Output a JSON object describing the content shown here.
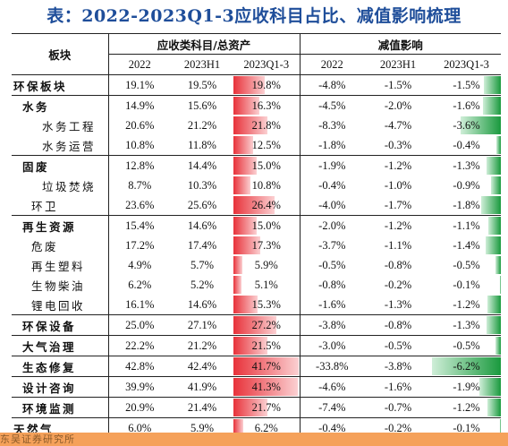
{
  "title": "表：2022-2023Q1-3应收科目占比、减值影响梳理",
  "header": {
    "col_name": "板块",
    "group1": "应收类科目/总资产",
    "group2": "减值影响",
    "sub": [
      "2022",
      "2023H1",
      "2023Q1-3",
      "2022",
      "2023H1",
      "2023Q1-3"
    ]
  },
  "rows": [
    {
      "name": "环保板块",
      "level": 0,
      "v": [
        "19.1%",
        "19.5%",
        "19.8%",
        "-4.8%",
        "-1.5%",
        "-1.5%"
      ],
      "r": 19.8,
      "i": -1.5
    },
    {
      "name": "水务",
      "level": 1,
      "v": [
        "14.9%",
        "15.6%",
        "16.3%",
        "-4.5%",
        "-2.0%",
        "-1.6%"
      ],
      "r": 16.3,
      "i": -1.6
    },
    {
      "name": "水务工程",
      "level": 2,
      "v": [
        "20.6%",
        "21.2%",
        "21.8%",
        "-8.3%",
        "-4.7%",
        "-3.6%"
      ],
      "r": 21.8,
      "i": -3.6
    },
    {
      "name": "水务运营",
      "level": 2,
      "v": [
        "10.8%",
        "11.8%",
        "12.5%",
        "-1.8%",
        "-0.3%",
        "-0.4%"
      ],
      "r": 12.5,
      "i": -0.4
    },
    {
      "name": "固废",
      "level": 1,
      "v": [
        "12.8%",
        "14.4%",
        "15.0%",
        "-1.9%",
        "-1.2%",
        "-1.3%"
      ],
      "r": 15.0,
      "i": -1.3
    },
    {
      "name": "垃圾焚烧",
      "level": 2,
      "v": [
        "8.7%",
        "10.3%",
        "10.8%",
        "-0.4%",
        "-1.0%",
        "-0.9%"
      ],
      "r": 10.8,
      "i": -0.9
    },
    {
      "name": "环卫",
      "level": 3,
      "v": [
        "23.6%",
        "25.6%",
        "26.4%",
        "-4.0%",
        "-1.7%",
        "-1.8%"
      ],
      "r": 26.4,
      "i": -1.8
    },
    {
      "name": "再生资源",
      "level": 1,
      "v": [
        "15.4%",
        "14.6%",
        "15.0%",
        "-2.0%",
        "-1.2%",
        "-1.1%"
      ],
      "r": 15.0,
      "i": -1.1
    },
    {
      "name": "危废",
      "level": 3,
      "v": [
        "17.2%",
        "17.4%",
        "17.3%",
        "-3.7%",
        "-1.1%",
        "-1.4%"
      ],
      "r": 17.3,
      "i": -1.4
    },
    {
      "name": "再生塑料",
      "level": 3,
      "v": [
        "4.9%",
        "5.7%",
        "5.9%",
        "-0.5%",
        "-0.8%",
        "-0.5%"
      ],
      "r": 5.9,
      "i": -0.5
    },
    {
      "name": "生物柴油",
      "level": 3,
      "v": [
        "6.2%",
        "5.2%",
        "5.1%",
        "-0.8%",
        "-0.2%",
        "-0.1%"
      ],
      "r": 5.1,
      "i": -0.1
    },
    {
      "name": "锂电回收",
      "level": 3,
      "v": [
        "16.1%",
        "14.6%",
        "15.3%",
        "-1.6%",
        "-1.3%",
        "-1.2%"
      ],
      "r": 15.3,
      "i": -1.2
    },
    {
      "name": "环保设备",
      "level": 1,
      "v": [
        "25.0%",
        "27.1%",
        "27.2%",
        "-3.8%",
        "-0.8%",
        "-1.3%"
      ],
      "r": 27.2,
      "i": -1.3
    },
    {
      "name": "大气治理",
      "level": 1,
      "v": [
        "22.2%",
        "21.2%",
        "21.5%",
        "-3.0%",
        "-0.5%",
        "-0.5%"
      ],
      "r": 21.5,
      "i": -0.5
    },
    {
      "name": "生态修复",
      "level": 1,
      "v": [
        "42.8%",
        "42.4%",
        "41.7%",
        "-33.8%",
        "-3.8%",
        "-6.2%"
      ],
      "r": 41.7,
      "i": -6.2
    },
    {
      "name": "设计咨询",
      "level": 1,
      "v": [
        "39.9%",
        "41.9%",
        "41.3%",
        "-4.6%",
        "-1.6%",
        "-1.9%"
      ],
      "r": 41.3,
      "i": -1.9
    },
    {
      "name": "环境监测",
      "level": 1,
      "v": [
        "20.9%",
        "21.4%",
        "21.7%",
        "-7.4%",
        "-0.7%",
        "-1.2%"
      ],
      "r": 21.7,
      "i": -1.2
    },
    {
      "name": "天然气",
      "level": 0,
      "v": [
        "6.0%",
        "5.9%",
        "6.2%",
        "-0.4%",
        "-0.2%",
        "-0.1%"
      ],
      "r": 6.2,
      "i": -0.1
    }
  ],
  "footer": "东吴证券研究所"
}
